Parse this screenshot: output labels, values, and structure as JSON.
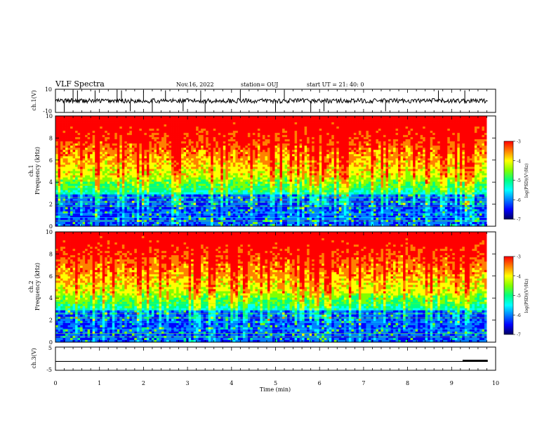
{
  "header": {
    "title": "VLF Spectra",
    "date": "Nov.16, 2022",
    "station": "station= OUJ",
    "start": "start  UT =   21: 40: 0"
  },
  "chart_data": [
    {
      "type": "line",
      "panel": "ch1-waveform",
      "ylabel": "ch.1(V)",
      "ylim": [
        -10,
        10
      ],
      "yticks": [
        "10",
        "-10"
      ],
      "xlim": [
        0,
        10
      ],
      "baseline": 0,
      "spike_times": [
        0.2,
        0.4,
        0.5,
        0.9,
        1.4,
        1.5,
        1.7,
        2.0,
        2.2,
        2.5,
        2.9,
        3.3,
        3.4,
        4.2,
        5.0,
        5.2,
        5.8,
        6.1,
        7.5,
        8.7,
        9.3
      ]
    },
    {
      "type": "heatmap",
      "panel": "ch1-spectrogram",
      "ylabel": "ch.1\nFrequency (kHz)",
      "ylim": [
        0,
        10
      ],
      "yticks": [
        "0",
        "2",
        "4",
        "6",
        "8",
        "10"
      ],
      "xlim": [
        0,
        10
      ],
      "colorbar": {
        "label": "log(PSD)(V²/Hz)",
        "range": [
          -7,
          -3
        ],
        "ticks": [
          "-3",
          "-4",
          "-5",
          "-6",
          "-7"
        ]
      }
    },
    {
      "type": "heatmap",
      "panel": "ch2-spectrogram",
      "ylabel": "ch.2\nFrequency (kHz)",
      "ylim": [
        0,
        10
      ],
      "yticks": [
        "0",
        "2",
        "4",
        "6",
        "8",
        "10"
      ],
      "xlim": [
        0,
        10
      ],
      "colorbar": {
        "label": "log(PSD)(V²/Hz)",
        "range": [
          -7,
          -3
        ],
        "ticks": [
          "-3",
          "-4",
          "-5",
          "-6",
          "-7"
        ]
      }
    },
    {
      "type": "line",
      "panel": "ch3-waveform",
      "ylabel": "ch.3(V)",
      "ylim": [
        -5,
        5
      ],
      "yticks": [
        "5",
        "-5"
      ],
      "xlim": [
        0,
        10
      ],
      "value": -1.2,
      "thick_from": 9.25
    }
  ],
  "xaxis": {
    "label": "Time (min)",
    "ticks": [
      "0",
      "1",
      "2",
      "3",
      "4",
      "5",
      "6",
      "7",
      "8",
      "9",
      "10"
    ]
  },
  "colors": {
    "palette": [
      "#000060",
      "#0000ff",
      "#0080ff",
      "#00ffff",
      "#00ff80",
      "#80ff00",
      "#ffff00",
      "#ff8000",
      "#ff0000",
      "#ffffff"
    ]
  }
}
